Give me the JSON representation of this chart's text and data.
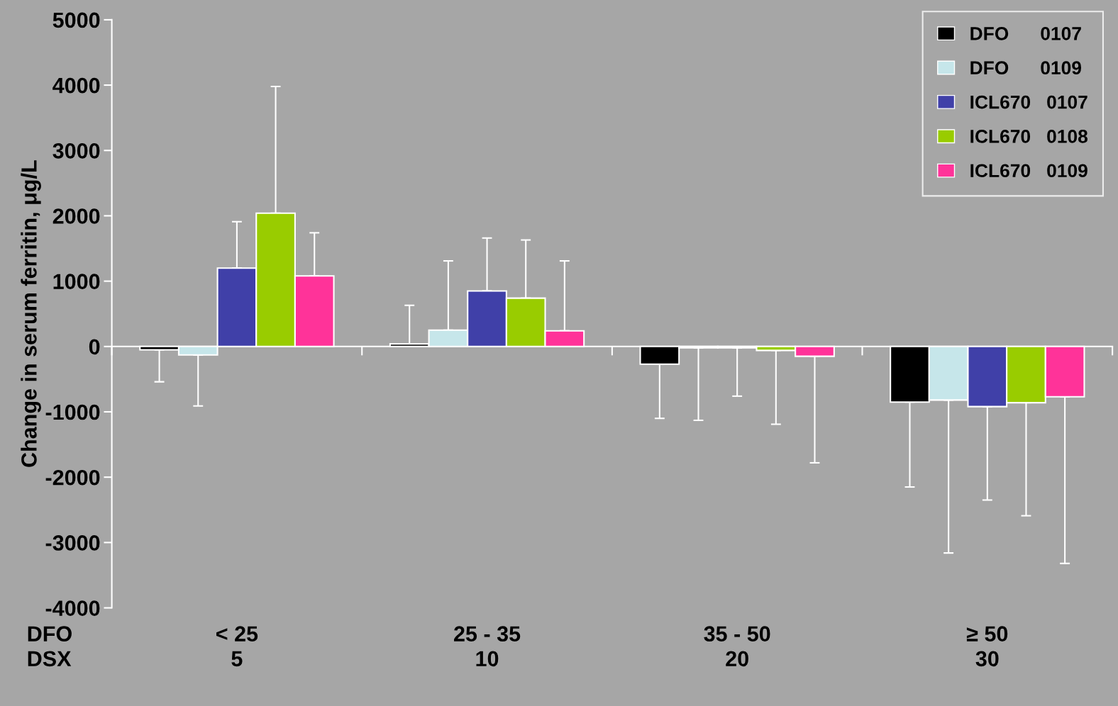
{
  "chart_data": {
    "type": "bar",
    "ylabel": "Change in serum ferritin, μg/L",
    "categories": [
      "< 25\n5",
      "25 - 35\n10",
      "35 - 50\n20",
      "≥ 50\n30"
    ],
    "series": [
      {
        "name": "DFO      0107",
        "color": "#000000",
        "values": [
          -50,
          40,
          -270,
          -850
        ],
        "errors": [
          [
            -540,
            -50
          ],
          [
            40,
            630
          ],
          [
            -1100,
            -270
          ],
          [
            -2150,
            -850
          ]
        ]
      },
      {
        "name": "DFO      0109",
        "color": "#c6e6ea",
        "values": [
          -130,
          250,
          -20,
          -820
        ],
        "errors": [
          [
            -910,
            -130
          ],
          [
            250,
            1310
          ],
          [
            -1130,
            -20
          ],
          [
            -3160,
            -820
          ]
        ]
      },
      {
        "name": "ICL670   0107",
        "color": "#4040a8",
        "values": [
          1200,
          850,
          -20,
          -920
        ],
        "errors": [
          [
            1200,
            1910
          ],
          [
            850,
            1660
          ],
          [
            -760,
            -20
          ],
          [
            -2350,
            -920
          ]
        ]
      },
      {
        "name": "ICL670   0108",
        "color": "#99cc00",
        "values": [
          2040,
          740,
          -60,
          -860
        ],
        "errors": [
          [
            2040,
            3980
          ],
          [
            740,
            1630
          ],
          [
            -1190,
            -60
          ],
          [
            -2590,
            -860
          ]
        ]
      },
      {
        "name": "ICL670   0109",
        "color": "#ff3399",
        "values": [
          1080,
          240,
          -150,
          -770
        ],
        "errors": [
          [
            1080,
            1740
          ],
          [
            240,
            1310
          ],
          [
            -1780,
            -150
          ],
          [
            -3320,
            -770
          ]
        ]
      }
    ],
    "ylim": [
      -4000,
      5000
    ],
    "yticks": [
      -4000,
      -3000,
      -2000,
      -1000,
      0,
      1000,
      2000,
      3000,
      4000,
      5000
    ],
    "annotations": [
      "DFO\nDSX"
    ],
    "legend": "top right"
  }
}
